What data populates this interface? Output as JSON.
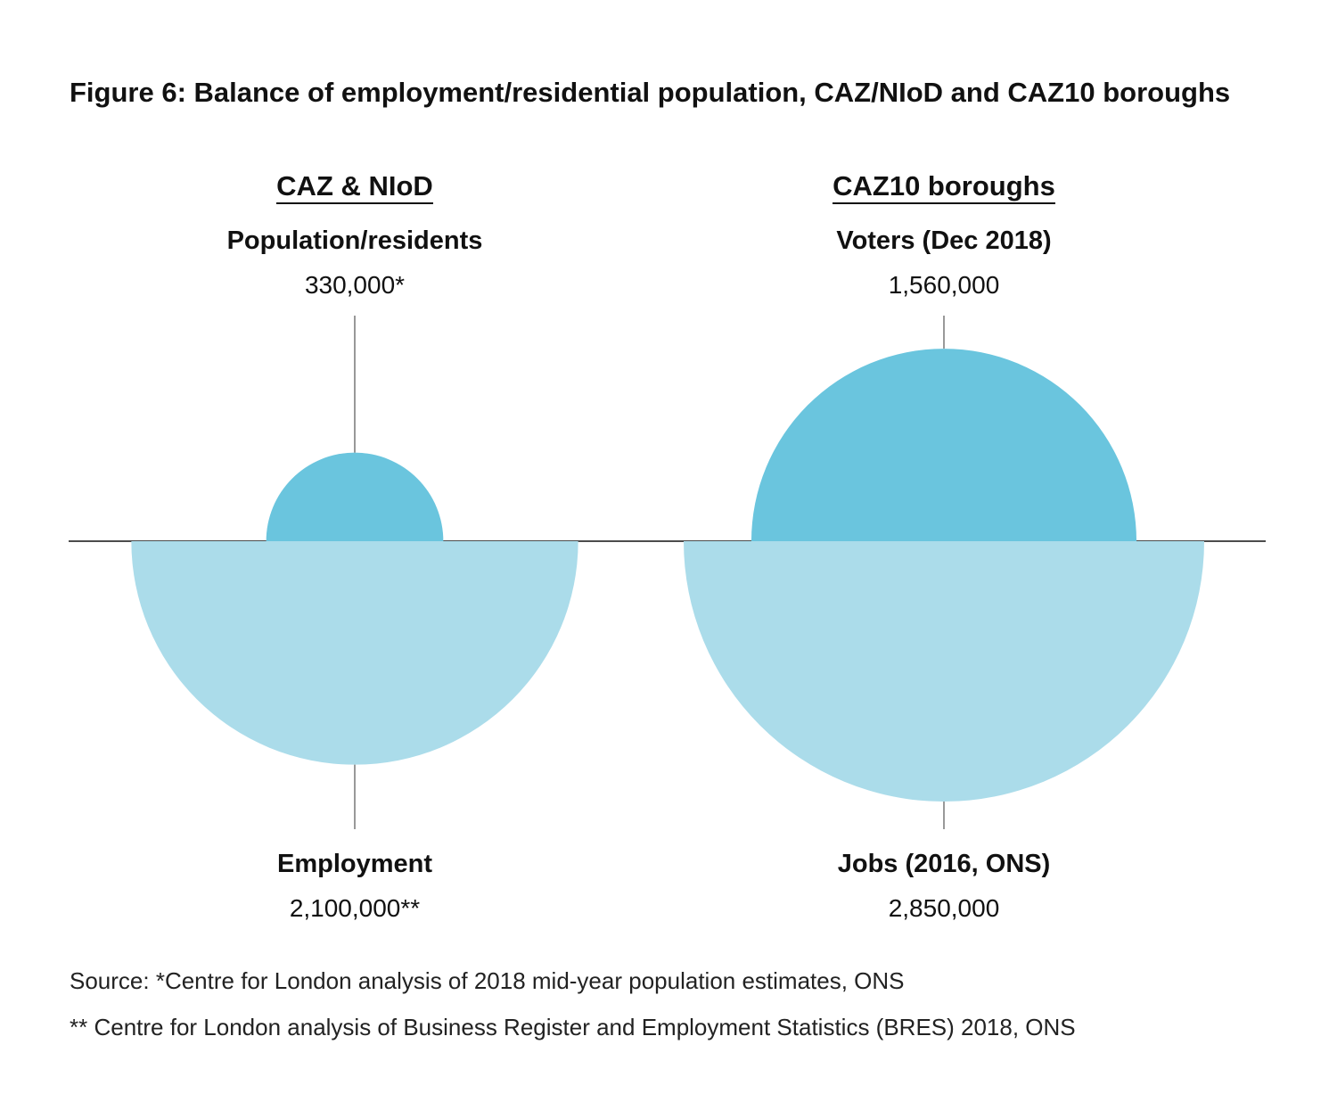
{
  "title": "Figure 6: Balance of employment/residential population, CAZ/NIoD and CAZ10 boroughs",
  "colors": {
    "top_circle": "#6ac5de",
    "bottom_circle": "#abdcea",
    "line": "#111111"
  },
  "chart_data": [
    {
      "type": "semicircle-comparison",
      "panel_title": "CAZ & NIoD",
      "top": {
        "label": "Population/residents",
        "value": 330000,
        "display": "330,000*"
      },
      "bottom": {
        "label": "Employment",
        "value": 2100000,
        "display": "2,100,000**"
      }
    },
    {
      "type": "semicircle-comparison",
      "panel_title": "CAZ10 boroughs",
      "top": {
        "label": "Voters (Dec 2018)",
        "value": 1560000,
        "display": "1,560,000"
      },
      "bottom": {
        "label": "Jobs (2016, ONS)",
        "value": 2850000,
        "display": "2,850,000"
      }
    }
  ],
  "sources": [
    "Source: *Centre for London analysis of 2018 mid-year population estimates, ONS",
    "** Centre for London analysis of Business Register and Employment Statistics (BRES) 2018, ONS"
  ]
}
